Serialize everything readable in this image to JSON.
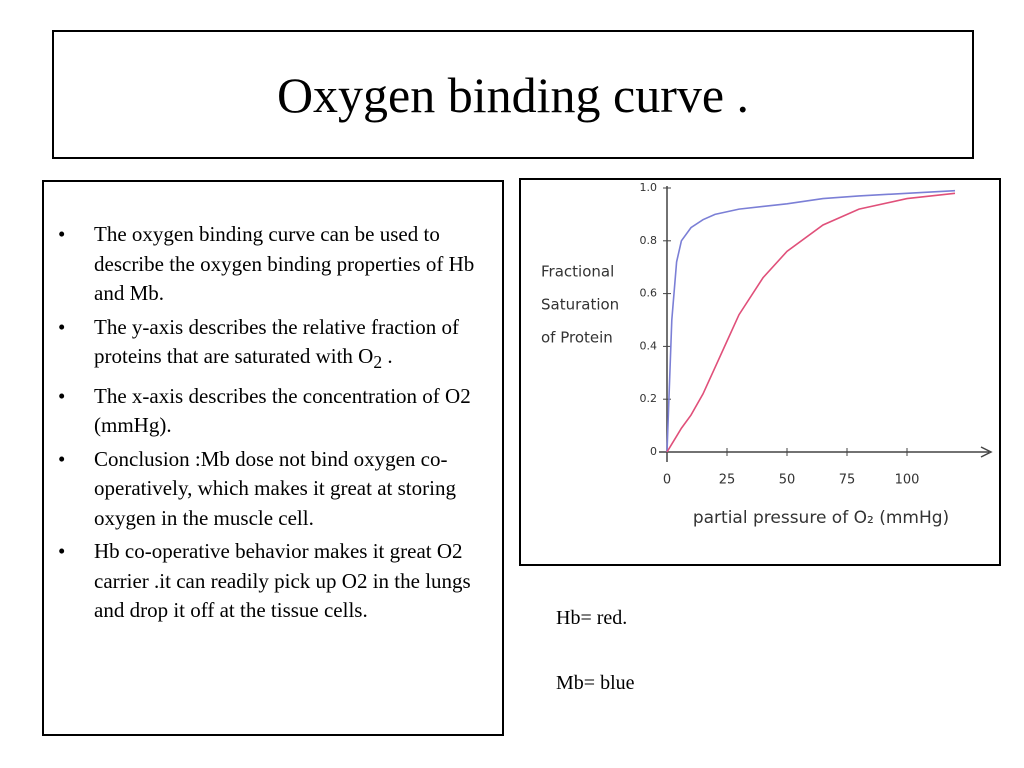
{
  "title": "Oxygen binding curve .",
  "bullets": [
    {
      "text": "The oxygen binding curve can be used to describe the oxygen binding properties of Hb and Mb."
    },
    {
      "text": "The y-axis describes the relative fraction of proteins that are saturated with O",
      "sub": "2",
      "after": " ."
    },
    {
      "text": "The x-axis describes the concentration of O2 (mmHg)."
    },
    {
      "text": "Conclusion :Mb dose not bind oxygen co-operatively, which makes it great at storing oxygen in the muscle cell."
    },
    {
      "text": "Hb co-operative behavior makes it great O2 carrier .it can readily pick up O2 in the lungs and drop it off at the tissue cells."
    }
  ],
  "notes": [
    "Hb= red.",
    "Mb= blue"
  ],
  "chart_data": {
    "type": "line",
    "ylabel": [
      "Fractional",
      "Saturation",
      "of Protein"
    ],
    "xlabel": "partial pressure of O₂ (mmHg)",
    "x": [
      0,
      2,
      4,
      6,
      10,
      15,
      20,
      25,
      30,
      40,
      50,
      65,
      80,
      100,
      120
    ],
    "series": [
      {
        "color": "#7b7fd6",
        "values": [
          0,
          0.5,
          0.72,
          0.8,
          0.85,
          0.88,
          0.9,
          0.91,
          0.92,
          0.93,
          0.94,
          0.96,
          0.97,
          0.98,
          0.99
        ]
      },
      {
        "color": "#e0507a",
        "values": [
          0,
          0.03,
          0.06,
          0.09,
          0.14,
          0.22,
          0.32,
          0.42,
          0.52,
          0.66,
          0.76,
          0.86,
          0.92,
          0.96,
          0.98
        ]
      }
    ],
    "xlim": [
      0,
      125
    ],
    "ylim": [
      0,
      1
    ],
    "xticks": [
      0,
      25,
      50,
      75,
      100
    ],
    "yticks": [
      0,
      0.2,
      0.4,
      0.6,
      0.8,
      {
        "value": 1,
        "label": "1.0"
      }
    ]
  }
}
